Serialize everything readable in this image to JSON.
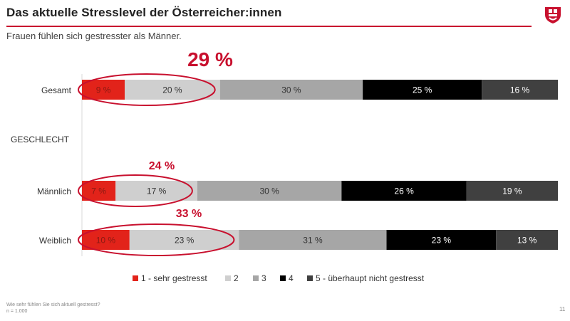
{
  "header": {
    "title": "Das aktuelle Stresslevel der Österreicher:innen",
    "subtitle": "Frauen fühlen sich gestresster als Männer.",
    "accent_color": "#c8102e",
    "logo_icon": "shield-logo-icon"
  },
  "chart_data": {
    "type": "bar",
    "orientation": "horizontal",
    "stacked": true,
    "percent_scale": true,
    "group_label": "GESCHLECHT",
    "categories": [
      "Gesamt",
      "Männlich",
      "Weiblich"
    ],
    "series": [
      {
        "name": "1 - sehr gestresst",
        "values": [
          9,
          7,
          10
        ],
        "color": "#e2231a",
        "text_color": "#8a1a12"
      },
      {
        "name": "2",
        "values": [
          20,
          17,
          23
        ],
        "color": "#cfcfcf",
        "text_color": "#333333"
      },
      {
        "name": "3",
        "values": [
          30,
          30,
          31
        ],
        "color": "#a6a6a6",
        "text_color": "#333333"
      },
      {
        "name": "4",
        "values": [
          25,
          26,
          23
        ],
        "color": "#000000",
        "text_color": "#ffffff"
      },
      {
        "name": "5 - überhaupt nicht gestresst",
        "values": [
          16,
          19,
          13
        ],
        "color": "#404040",
        "text_color": "#ffffff"
      }
    ],
    "value_suffix": " %",
    "highlights": [
      {
        "category": "Gesamt",
        "label": "29 %"
      },
      {
        "category": "Männlich",
        "label": "24 %"
      },
      {
        "category": "Weiblich",
        "label": "33 %"
      }
    ],
    "highlight_color": "#c8102e",
    "legend_position": "bottom",
    "grid": false
  },
  "footer": {
    "question": "Wie sehr fühlen Sie sich aktuell gestresst?",
    "sample": "n = 1.000",
    "page_number": "11"
  }
}
